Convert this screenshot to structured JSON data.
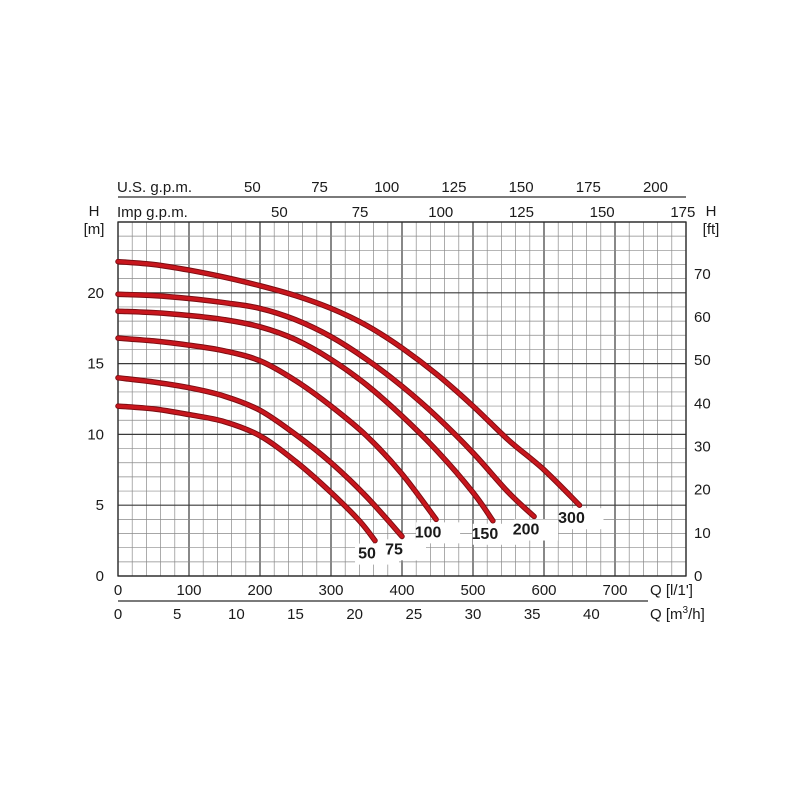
{
  "chart_data": {
    "type": "line",
    "x_axis_bottom_1": {
      "label": "Q [l/1']",
      "range": [
        0,
        800
      ],
      "ticks": [
        0,
        100,
        200,
        300,
        400,
        500,
        600,
        700
      ]
    },
    "x_axis_bottom_2": {
      "label_prefix": "Q [m",
      "label_sup": "3",
      "label_suffix": "/h]",
      "ticks": [
        0,
        5,
        10,
        15,
        20,
        25,
        30,
        35,
        40
      ]
    },
    "x_axis_top_1": {
      "label": "U.S. g.p.m.",
      "ticks": [
        50,
        75,
        100,
        125,
        150,
        175,
        200
      ]
    },
    "x_axis_top_2": {
      "label": "Imp g.p.m.",
      "ticks": [
        50,
        75,
        100,
        125,
        150,
        175
      ]
    },
    "y_axis_left": {
      "label_top": "H",
      "label_unit": "[m]",
      "range": [
        0,
        25
      ],
      "ticks": [
        0,
        5,
        10,
        15,
        20
      ]
    },
    "y_axis_right": {
      "label_top": "H",
      "label_unit": "[ft]",
      "ticks": [
        0,
        10,
        20,
        30,
        40,
        50,
        60,
        70
      ]
    },
    "grid": true,
    "curve_color": "#c8161d",
    "series": [
      {
        "name": "50",
        "x": [
          0,
          50,
          100,
          150,
          200,
          250,
          300,
          340,
          362
        ],
        "y": [
          12.0,
          11.8,
          11.4,
          10.9,
          9.9,
          8.1,
          5.9,
          3.9,
          2.5
        ]
      },
      {
        "name": "75",
        "x": [
          0,
          50,
          100,
          150,
          200,
          250,
          300,
          350,
          400
        ],
        "y": [
          14.0,
          13.7,
          13.3,
          12.7,
          11.7,
          10.0,
          8.0,
          5.6,
          2.8
        ]
      },
      {
        "name": "100",
        "x": [
          0,
          50,
          100,
          150,
          200,
          250,
          300,
          350,
          400,
          448
        ],
        "y": [
          16.8,
          16.6,
          16.3,
          15.9,
          15.2,
          13.8,
          12.0,
          9.9,
          7.2,
          4.0
        ]
      },
      {
        "name": "150",
        "x": [
          0,
          50,
          100,
          150,
          200,
          250,
          300,
          350,
          400,
          450,
          500,
          528
        ],
        "y": [
          18.7,
          18.6,
          18.4,
          18.1,
          17.6,
          16.7,
          15.3,
          13.5,
          11.3,
          8.8,
          5.9,
          3.9
        ]
      },
      {
        "name": "200",
        "x": [
          0,
          50,
          100,
          150,
          200,
          250,
          300,
          350,
          400,
          450,
          500,
          550,
          586
        ],
        "y": [
          19.9,
          19.8,
          19.6,
          19.3,
          18.9,
          18.1,
          16.9,
          15.3,
          13.4,
          11.2,
          8.7,
          5.9,
          4.2
        ]
      },
      {
        "name": "300",
        "x": [
          0,
          50,
          100,
          150,
          200,
          250,
          300,
          350,
          400,
          450,
          500,
          550,
          600,
          650
        ],
        "y": [
          22.2,
          22.0,
          21.6,
          21.1,
          20.5,
          19.8,
          18.9,
          17.7,
          16.1,
          14.2,
          12.0,
          9.6,
          7.5,
          5.0
        ]
      }
    ]
  }
}
